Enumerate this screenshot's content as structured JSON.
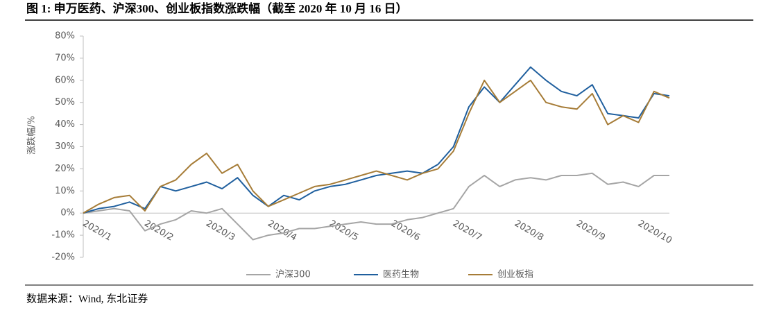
{
  "title": "图 1: 申万医药、沪深300、创业板指数涨跌幅（截至 2020 年 10 月 16 日）",
  "source": "数据来源：Wind, 东北证券",
  "chart_data": {
    "type": "line",
    "y_label": "涨跌幅/%",
    "categories": [
      "2020/1",
      null,
      null,
      null,
      "2020/2",
      null,
      null,
      null,
      "2020/3",
      null,
      null,
      null,
      "2020/4",
      null,
      null,
      null,
      "2020/5",
      null,
      null,
      null,
      "2020/6",
      null,
      null,
      null,
      "2020/7",
      null,
      null,
      null,
      "2020/8",
      null,
      null,
      null,
      "2020/9",
      null,
      null,
      null,
      "2020/10",
      null,
      null
    ],
    "series": [
      {
        "name": "沪深300",
        "color": "#a5a5a5",
        "values": [
          0,
          1,
          2,
          1,
          -8,
          -5,
          -3,
          1,
          0,
          2,
          -5,
          -12,
          -10,
          -9,
          -7,
          -7,
          -6,
          -5,
          -4,
          -5,
          -5,
          -3,
          -2,
          0,
          2,
          12,
          17,
          12,
          15,
          16,
          15,
          17,
          17,
          18,
          13,
          14,
          12,
          17,
          17
        ]
      },
      {
        "name": "医药生物",
        "color": "#1f5f9e",
        "values": [
          0,
          2,
          3,
          5,
          2,
          12,
          10,
          12,
          14,
          11,
          16,
          8,
          3,
          8,
          6,
          10,
          12,
          13,
          15,
          17,
          18,
          19,
          18,
          22,
          30,
          48,
          57,
          50,
          58,
          66,
          60,
          55,
          53,
          58,
          45,
          44,
          43,
          54,
          53
        ]
      },
      {
        "name": "创业板指",
        "color": "#a67c37",
        "values": [
          0,
          4,
          7,
          8,
          1,
          12,
          15,
          22,
          27,
          18,
          22,
          10,
          3,
          6,
          9,
          12,
          13,
          15,
          17,
          19,
          17,
          15,
          18,
          20,
          28,
          45,
          60,
          50,
          55,
          60,
          50,
          48,
          47,
          54,
          40,
          44,
          41,
          55,
          52
        ]
      }
    ],
    "ylim": [
      -20,
      80
    ],
    "yticks": [
      {
        "value": -20,
        "label": "-20%"
      },
      {
        "value": -10,
        "label": "-10%"
      },
      {
        "value": 0,
        "label": "0%"
      },
      {
        "value": 10,
        "label": "10%"
      },
      {
        "value": 20,
        "label": "20%"
      },
      {
        "value": 30,
        "label": "30%"
      },
      {
        "value": 40,
        "label": "40%"
      },
      {
        "value": 50,
        "label": "50%"
      },
      {
        "value": 60,
        "label": "60%"
      },
      {
        "value": 70,
        "label": "70%"
      },
      {
        "value": 80,
        "label": "80%"
      }
    ],
    "grid": false,
    "legend": "bottom"
  }
}
